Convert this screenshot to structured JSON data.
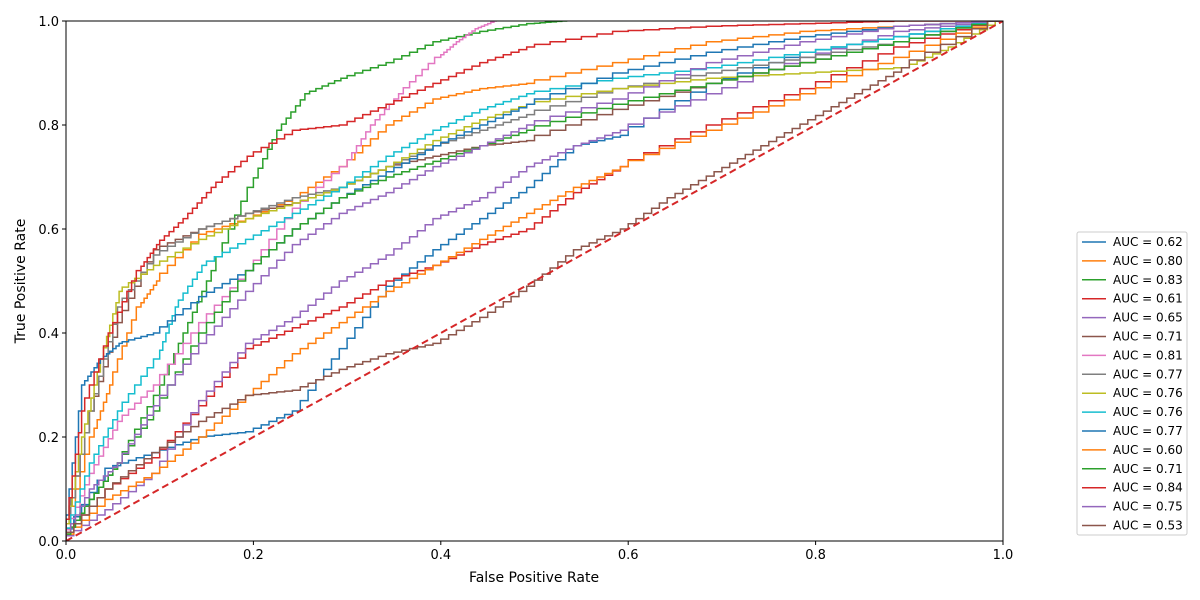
{
  "chart_data": {
    "type": "line",
    "title": "",
    "xlabel": "False Positive Rate",
    "ylabel": "True Positive Rate",
    "xlim": [
      0.0,
      1.0
    ],
    "ylim": [
      0.0,
      1.0
    ],
    "xticks": [
      "0.0",
      "0.2",
      "0.4",
      "0.6",
      "0.8",
      "1.0"
    ],
    "yticks": [
      "0.0",
      "0.2",
      "0.4",
      "0.6",
      "0.8",
      "1.0"
    ],
    "grid": false,
    "legend_position": "right",
    "diagonal": {
      "color": "#d62728",
      "style": "dashed",
      "x": [
        0,
        1
      ],
      "y": [
        0,
        1
      ]
    },
    "series": [
      {
        "name": "AUC = 0.62",
        "color": "#1f77b4",
        "x": [
          0,
          0.05,
          0.1,
          0.15,
          0.2,
          0.25,
          0.3,
          0.35,
          0.4,
          0.45,
          0.5,
          0.55,
          0.6,
          0.7,
          0.8,
          0.9,
          1.0
        ],
        "y": [
          0,
          0.14,
          0.17,
          0.2,
          0.21,
          0.25,
          0.37,
          0.49,
          0.56,
          0.62,
          0.68,
          0.76,
          0.78,
          0.88,
          0.94,
          0.97,
          1.0
        ]
      },
      {
        "name": "AUC = 0.80",
        "color": "#ff7f0e",
        "x": [
          0,
          0.03,
          0.05,
          0.08,
          0.1,
          0.15,
          0.2,
          0.25,
          0.3,
          0.35,
          0.4,
          0.45,
          0.5,
          0.6,
          0.7,
          0.8,
          0.9,
          1.0
        ],
        "y": [
          0,
          0.2,
          0.3,
          0.45,
          0.5,
          0.59,
          0.62,
          0.66,
          0.72,
          0.8,
          0.85,
          0.87,
          0.88,
          0.92,
          0.96,
          0.98,
          0.99,
          1.0
        ]
      },
      {
        "name": "AUC = 0.83",
        "color": "#2ca02c",
        "x": [
          0,
          0.03,
          0.06,
          0.1,
          0.13,
          0.16,
          0.2,
          0.23,
          0.26,
          0.3,
          0.35,
          0.4,
          0.45,
          0.5,
          0.535
        ],
        "y": [
          0,
          0.08,
          0.15,
          0.28,
          0.4,
          0.52,
          0.68,
          0.79,
          0.86,
          0.89,
          0.92,
          0.96,
          0.98,
          0.995,
          1.0
        ]
      },
      {
        "name": "AUC = 0.61",
        "color": "#d62728",
        "x": [
          0,
          0.05,
          0.1,
          0.15,
          0.2,
          0.25,
          0.3,
          0.35,
          0.4,
          0.45,
          0.5,
          0.55,
          0.6,
          0.7,
          0.8,
          0.9,
          1.0
        ],
        "y": [
          0,
          0.1,
          0.16,
          0.26,
          0.37,
          0.41,
          0.45,
          0.5,
          0.53,
          0.57,
          0.6,
          0.67,
          0.72,
          0.8,
          0.87,
          0.95,
          1.0
        ]
      },
      {
        "name": "AUC = 0.65",
        "color": "#9467bd",
        "x": [
          0,
          0.05,
          0.1,
          0.15,
          0.2,
          0.25,
          0.3,
          0.35,
          0.4,
          0.45,
          0.5,
          0.55,
          0.6,
          0.7,
          0.8,
          0.9,
          1.0
        ],
        "y": [
          0,
          0.06,
          0.13,
          0.27,
          0.38,
          0.43,
          0.5,
          0.55,
          0.62,
          0.66,
          0.72,
          0.76,
          0.79,
          0.86,
          0.93,
          0.98,
          1.0
        ]
      },
      {
        "name": "AUC = 0.71",
        "color": "#8c564b",
        "x": [
          0,
          0.03,
          0.06,
          0.1,
          0.15,
          0.2,
          0.25,
          0.3,
          0.35,
          0.4,
          0.45,
          0.5,
          0.6,
          0.7,
          0.8,
          0.9,
          1.0
        ],
        "y": [
          0,
          0.25,
          0.42,
          0.56,
          0.6,
          0.63,
          0.65,
          0.68,
          0.72,
          0.74,
          0.76,
          0.77,
          0.83,
          0.88,
          0.92,
          0.96,
          1.0
        ]
      },
      {
        "name": "AUC = 0.81",
        "color": "#e377c2",
        "x": [
          0,
          0.03,
          0.06,
          0.1,
          0.15,
          0.2,
          0.25,
          0.3,
          0.33,
          0.36,
          0.4,
          0.42,
          0.44,
          0.46
        ],
        "y": [
          0,
          0.13,
          0.23,
          0.3,
          0.42,
          0.52,
          0.64,
          0.72,
          0.8,
          0.86,
          0.93,
          0.96,
          0.985,
          1.0
        ]
      },
      {
        "name": "AUC = 0.77",
        "color": "#7f7f7f",
        "x": [
          0,
          0.03,
          0.06,
          0.1,
          0.15,
          0.2,
          0.25,
          0.3,
          0.35,
          0.4,
          0.45,
          0.5,
          0.6,
          0.7,
          0.8,
          0.9,
          1.0
        ],
        "y": [
          0,
          0.25,
          0.45,
          0.55,
          0.6,
          0.63,
          0.66,
          0.68,
          0.72,
          0.76,
          0.79,
          0.82,
          0.87,
          0.9,
          0.93,
          0.96,
          1.0
        ]
      },
      {
        "name": "AUC = 0.76",
        "color": "#bcbd22",
        "x": [
          0,
          0.02,
          0.04,
          0.06,
          0.1,
          0.15,
          0.2,
          0.25,
          0.3,
          0.35,
          0.4,
          0.45,
          0.5,
          0.6,
          0.7,
          0.8,
          0.9,
          0.95,
          1.0
        ],
        "y": [
          0,
          0.2,
          0.35,
          0.48,
          0.53,
          0.58,
          0.62,
          0.65,
          0.68,
          0.72,
          0.77,
          0.81,
          0.84,
          0.87,
          0.89,
          0.9,
          0.91,
          0.95,
          1.0
        ]
      },
      {
        "name": "AUC = 0.76",
        "color": "#17becf",
        "x": [
          0,
          0.03,
          0.06,
          0.1,
          0.12,
          0.15,
          0.2,
          0.25,
          0.3,
          0.35,
          0.4,
          0.45,
          0.5,
          0.6,
          0.7,
          0.8,
          0.9,
          1.0
        ],
        "y": [
          0,
          0.15,
          0.25,
          0.35,
          0.45,
          0.53,
          0.58,
          0.63,
          0.68,
          0.74,
          0.79,
          0.83,
          0.86,
          0.89,
          0.91,
          0.94,
          0.97,
          1.0
        ]
      },
      {
        "name": "AUC = 0.77",
        "color": "#1f77b4",
        "x": [
          0,
          0.02,
          0.04,
          0.06,
          0.1,
          0.15,
          0.2,
          0.25,
          0.3,
          0.35,
          0.4,
          0.45,
          0.5,
          0.6,
          0.7,
          0.8,
          0.9,
          1.0
        ],
        "y": [
          0,
          0.3,
          0.35,
          0.38,
          0.4,
          0.47,
          0.52,
          0.6,
          0.66,
          0.71,
          0.76,
          0.8,
          0.84,
          0.9,
          0.94,
          0.97,
          0.99,
          1.0
        ]
      },
      {
        "name": "AUC = 0.60",
        "color": "#ff7f0e",
        "x": [
          0,
          0.05,
          0.1,
          0.15,
          0.2,
          0.25,
          0.3,
          0.35,
          0.4,
          0.45,
          0.5,
          0.55,
          0.6,
          0.7,
          0.8,
          0.9,
          1.0
        ],
        "y": [
          0,
          0.08,
          0.13,
          0.2,
          0.28,
          0.36,
          0.42,
          0.48,
          0.53,
          0.58,
          0.63,
          0.68,
          0.72,
          0.79,
          0.86,
          0.93,
          1.0
        ]
      },
      {
        "name": "AUC = 0.71",
        "color": "#2ca02c",
        "x": [
          0,
          0.03,
          0.06,
          0.1,
          0.15,
          0.2,
          0.25,
          0.3,
          0.35,
          0.4,
          0.45,
          0.5,
          0.6,
          0.7,
          0.8,
          0.9,
          1.0
        ],
        "y": [
          0,
          0.08,
          0.15,
          0.25,
          0.4,
          0.52,
          0.6,
          0.66,
          0.7,
          0.73,
          0.76,
          0.79,
          0.84,
          0.88,
          0.92,
          0.96,
          1.0
        ]
      },
      {
        "name": "AUC = 0.84",
        "color": "#d62728",
        "x": [
          0,
          0.02,
          0.05,
          0.08,
          0.1,
          0.13,
          0.16,
          0.2,
          0.25,
          0.3,
          0.35,
          0.4,
          0.45,
          0.5,
          0.6,
          0.7,
          0.8,
          0.9,
          1.0
        ],
        "y": [
          0,
          0.25,
          0.4,
          0.52,
          0.57,
          0.62,
          0.68,
          0.74,
          0.79,
          0.8,
          0.84,
          0.88,
          0.92,
          0.95,
          0.98,
          0.99,
          0.995,
          1.0,
          1.0
        ]
      },
      {
        "name": "AUC = 0.75",
        "color": "#9467bd",
        "x": [
          0,
          0.03,
          0.06,
          0.1,
          0.15,
          0.2,
          0.25,
          0.3,
          0.35,
          0.4,
          0.45,
          0.5,
          0.6,
          0.7,
          0.8,
          0.9,
          1.0
        ],
        "y": [
          0,
          0.1,
          0.15,
          0.26,
          0.38,
          0.48,
          0.57,
          0.63,
          0.67,
          0.72,
          0.76,
          0.8,
          0.85,
          0.92,
          0.96,
          0.99,
          1.0
        ]
      },
      {
        "name": "AUC = 0.53",
        "color": "#8c564b",
        "x": [
          0,
          0.05,
          0.1,
          0.15,
          0.2,
          0.25,
          0.3,
          0.35,
          0.4,
          0.45,
          0.5,
          0.55,
          0.6,
          0.65,
          0.7,
          0.75,
          0.8,
          0.85,
          0.9,
          1.0
        ],
        "y": [
          0,
          0.1,
          0.17,
          0.23,
          0.28,
          0.29,
          0.33,
          0.36,
          0.38,
          0.43,
          0.49,
          0.56,
          0.6,
          0.66,
          0.71,
          0.76,
          0.81,
          0.86,
          0.91,
          1.0
        ]
      }
    ]
  }
}
